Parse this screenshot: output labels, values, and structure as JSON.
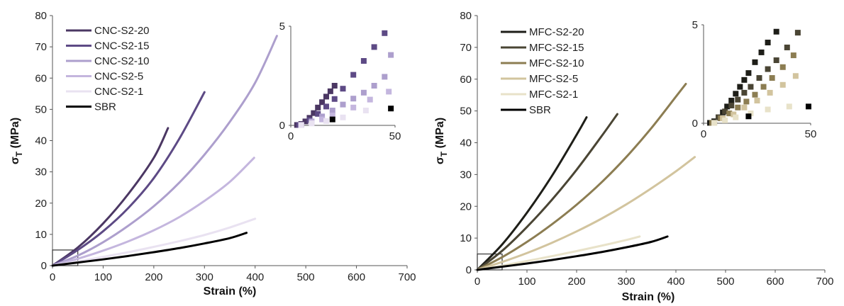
{
  "chart_data": [
    {
      "type": "line",
      "xlabel": "Strain (%)",
      "ylabel_main": "σ",
      "ylabel_sub": "T",
      "ylabel_unit": " (MPa)",
      "xlim": [
        0,
        700
      ],
      "ylim": [
        0,
        80
      ],
      "xticks": [
        "0",
        "100",
        "200",
        "300",
        "400",
        "500",
        "600",
        "700"
      ],
      "yticks": [
        "0",
        "10",
        "20",
        "30",
        "40",
        "50",
        "60",
        "70",
        "80"
      ],
      "legend_position": "top-left",
      "series": [
        {
          "name": "CNC-S2-20",
          "color": "#4b3763",
          "x": [
            0,
            50,
            100,
            150,
            200,
            228
          ],
          "y": [
            0,
            5.8,
            13.5,
            23.0,
            34.5,
            44
          ]
        },
        {
          "name": "CNC-S2-15",
          "color": "#5d4a85",
          "x": [
            0,
            50,
            100,
            150,
            200,
            250,
            300
          ],
          "y": [
            0,
            5.0,
            11.0,
            18.5,
            28.0,
            40.5,
            55.5
          ]
        },
        {
          "name": "CNC-S2-10",
          "color": "#ad9fcd",
          "x": [
            0,
            50,
            100,
            150,
            200,
            250,
            300,
            350,
            400,
            443
          ],
          "y": [
            0,
            3.2,
            7.5,
            12.8,
            19.0,
            26.5,
            35.5,
            46.0,
            58.5,
            73.5
          ]
        },
        {
          "name": "CNC-S2-5",
          "color": "#c4b6de",
          "x": [
            0,
            50,
            100,
            150,
            200,
            250,
            300,
            350,
            398
          ],
          "y": [
            0,
            2.2,
            4.8,
            7.8,
            11.3,
            15.5,
            20.7,
            26.8,
            34.5
          ]
        },
        {
          "name": "CNC-S2-1",
          "color": "#e9e2f1",
          "x": [
            0,
            50,
            100,
            150,
            200,
            250,
            300,
            350,
            400
          ],
          "y": [
            0,
            1.3,
            2.8,
            4.3,
            6.0,
            7.8,
            9.8,
            12.2,
            15.0
          ]
        },
        {
          "name": "SBR",
          "color": "#000000",
          "x": [
            0,
            50,
            100,
            150,
            200,
            250,
            300,
            350,
            383
          ],
          "y": [
            0,
            1.0,
            2.0,
            3.1,
            4.3,
            5.6,
            7.1,
            8.8,
            10.5
          ]
        }
      ],
      "inset": {
        "xlim": [
          0,
          50
        ],
        "ylim": [
          0,
          5
        ],
        "xticks": [
          "0",
          "50"
        ],
        "yticks": [
          "0",
          "5"
        ],
        "series": [
          {
            "name": "CNC-S2-20",
            "x": [
              3,
              5,
              7,
              9,
              11,
              13,
              15,
              17,
              19,
              21
            ],
            "y": [
              0.02,
              0.07,
              0.2,
              0.38,
              0.62,
              0.9,
              1.17,
              1.45,
              1.72,
              2.0
            ]
          },
          {
            "name": "CNC-S2-15",
            "x": [
              4,
              9,
              13,
              17,
              21,
              25,
              30,
              35,
              40,
              45
            ],
            "y": [
              0.02,
              0.27,
              0.58,
              0.95,
              1.33,
              1.85,
              2.55,
              3.25,
              3.95,
              4.65
            ]
          },
          {
            "name": "CNC-S2-10",
            "x": [
              5,
              10,
              15,
              20,
              25,
              30,
              35,
              40,
              45,
              48
            ],
            "y": [
              0.02,
              0.2,
              0.45,
              0.75,
              1.05,
              1.35,
              1.65,
              2.0,
              2.45,
              3.55
            ]
          },
          {
            "name": "CNC-S2-5",
            "x": [
              5,
              10,
              15,
              20,
              30,
              38,
              47
            ],
            "y": [
              0.02,
              0.15,
              0.3,
              0.5,
              0.9,
              1.3,
              1.7
            ]
          },
          {
            "name": "CNC-S2-1",
            "x": [
              5,
              10,
              17,
              25,
              36
            ],
            "y": [
              0.02,
              0.1,
              0.22,
              0.4,
              0.75
            ]
          },
          {
            "name": "SBR",
            "x": [
              20,
              48
            ],
            "y": [
              0.3,
              0.85
            ]
          }
        ]
      }
    },
    {
      "type": "line",
      "xlabel": "Strain (%)",
      "ylabel_main": "σ",
      "ylabel_sub": "T",
      "ylabel_unit": " (MPa)",
      "xlim": [
        0,
        700
      ],
      "ylim": [
        0,
        80
      ],
      "xticks": [
        "0",
        "100",
        "200",
        "300",
        "400",
        "500",
        "600",
        "700"
      ],
      "yticks": [
        "0",
        "10",
        "20",
        "30",
        "40",
        "50",
        "60",
        "70",
        "80"
      ],
      "legend_position": "top-left",
      "series": [
        {
          "name": "MFC-S2-20",
          "color": "#1e1e18",
          "x": [
            0,
            50,
            100,
            150,
            200,
            220
          ],
          "y": [
            0,
            8.0,
            18.0,
            29.5,
            42.5,
            48
          ]
        },
        {
          "name": "MFC-S2-15",
          "color": "#4a4534",
          "x": [
            0,
            50,
            100,
            150,
            200,
            250,
            282
          ],
          "y": [
            0,
            6.0,
            13.5,
            22.0,
            31.5,
            42.0,
            49
          ]
        },
        {
          "name": "MFC-S2-10",
          "color": "#8c7d52",
          "x": [
            0,
            50,
            100,
            150,
            200,
            250,
            300,
            350,
            400,
            420
          ],
          "y": [
            0,
            4.0,
            8.8,
            14.3,
            20.5,
            27.5,
            35.5,
            44.5,
            54.5,
            58.5
          ]
        },
        {
          "name": "MFC-S2-5",
          "color": "#d2c49e",
          "x": [
            0,
            50,
            100,
            150,
            200,
            250,
            300,
            350,
            400,
            438
          ],
          "y": [
            0,
            2.5,
            5.3,
            8.5,
            12.1,
            16.1,
            20.6,
            25.6,
            31.0,
            35.5
          ]
        },
        {
          "name": "MFC-S2-1",
          "color": "#e8e2c9",
          "x": [
            0,
            50,
            100,
            150,
            200,
            250,
            300,
            327
          ],
          "y": [
            0,
            1.3,
            2.8,
            4.3,
            5.9,
            7.6,
            9.4,
            10.5
          ]
        },
        {
          "name": "SBR",
          "color": "#000000",
          "x": [
            0,
            50,
            100,
            150,
            200,
            250,
            300,
            350,
            383
          ],
          "y": [
            0,
            1.0,
            2.0,
            3.1,
            4.3,
            5.6,
            7.1,
            8.8,
            10.5
          ]
        }
      ],
      "inset": {
        "xlim": [
          0,
          50
        ],
        "ylim": [
          0,
          5
        ],
        "xticks": [
          "0",
          "50"
        ],
        "yticks": [
          "0",
          "5"
        ],
        "series": [
          {
            "name": "MFC-S2-20",
            "x": [
              3,
              5,
              7,
              9,
              11,
              13,
              15,
              17,
              19,
              21,
              24,
              27,
              30,
              34
            ],
            "y": [
              0.02,
              0.1,
              0.3,
              0.55,
              0.85,
              1.15,
              1.5,
              1.85,
              2.2,
              2.55,
              3.1,
              3.6,
              4.1,
              4.65
            ]
          },
          {
            "name": "MFC-S2-15",
            "x": [
              4,
              7,
              10,
              13,
              16,
              19,
              22,
              26,
              30,
              34,
              39,
              44
            ],
            "y": [
              0.02,
              0.3,
              0.6,
              0.9,
              1.2,
              1.55,
              1.85,
              2.3,
              2.75,
              3.2,
              3.85,
              4.6
            ]
          },
          {
            "name": "MFC-S2-10",
            "x": [
              4,
              8,
              12,
              16,
              20,
              24,
              28,
              32,
              37,
              42
            ],
            "y": [
              0.02,
              0.25,
              0.5,
              0.8,
              1.1,
              1.45,
              1.85,
              2.3,
              2.85,
              3.45
            ]
          },
          {
            "name": "MFC-S2-5",
            "x": [
              5,
              9,
              14,
              19,
              25,
              31,
              37,
              43
            ],
            "y": [
              0.02,
              0.25,
              0.45,
              0.8,
              1.15,
              1.55,
              1.95,
              2.4
            ]
          },
          {
            "name": "MFC-S2-1",
            "x": [
              5,
              10,
              15,
              22,
              30,
              40
            ],
            "y": [
              0.02,
              0.15,
              0.3,
              0.5,
              0.7,
              0.85
            ]
          },
          {
            "name": "SBR",
            "x": [
              21,
              49
            ],
            "y": [
              0.35,
              0.85
            ]
          }
        ]
      }
    }
  ]
}
